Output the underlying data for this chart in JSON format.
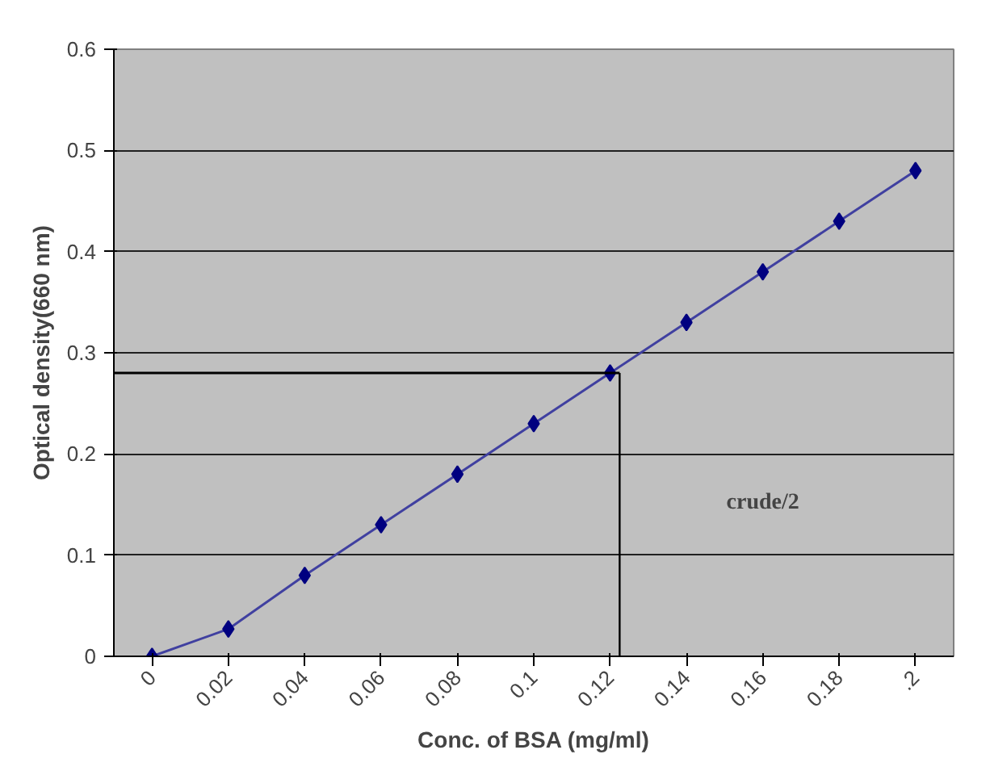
{
  "chart_data": {
    "type": "line",
    "xlabel": "Conc. of BSA (mg/ml)",
    "ylabel": "Optical density(660 nm)",
    "x": [
      0,
      0.02,
      0.04,
      0.06,
      0.08,
      0.1,
      0.12,
      0.14,
      0.16,
      0.18,
      0.2
    ],
    "series": [
      {
        "color": "#000080",
        "values": [
          0,
          0.027,
          0.08,
          0.13,
          0.18,
          0.23,
          0.28,
          0.33,
          0.38,
          0.43,
          0.48
        ]
      }
    ],
    "xlim": [
      -0.01,
      0.21
    ],
    "ylim": [
      0,
      0.6
    ],
    "xticks": [
      0,
      0.02,
      0.04,
      0.06,
      0.08,
      0.1,
      0.12,
      0.14,
      0.16,
      0.18,
      {
        "value": 0.2,
        "label": ".2"
      }
    ],
    "yticks": [
      0,
      0.1,
      0.2,
      0.3,
      0.4,
      0.5,
      0.6
    ],
    "ref_lines": [
      {
        "axis": "y",
        "value": 0.28,
        "label": null
      },
      {
        "axis": "x",
        "value": 0.1225,
        "label": null
      }
    ],
    "annotations": [
      "crude/2"
    ],
    "grid": "y",
    "marker": "diamond",
    "line_style": "solid"
  }
}
